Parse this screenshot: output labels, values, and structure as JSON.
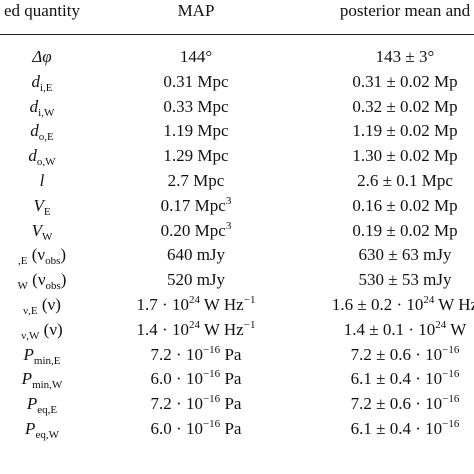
{
  "headers": [
    "ed quantity",
    "MAP",
    "posterior mean and"
  ],
  "rows": [
    {
      "sym": "Δφ",
      "sub": "",
      "sup": "",
      "tail": "",
      "map": "144°",
      "map_sup": "",
      "map_unit": "",
      "post": "143 ± 3°",
      "post_sup": "",
      "post_unit": ""
    },
    {
      "sym": "d",
      "sub": "i,E",
      "sup": "",
      "tail": "",
      "map": "0.31 Mpc",
      "map_sup": "",
      "map_unit": "",
      "post": "0.31 ± 0.02 Mp",
      "post_sup": "",
      "post_unit": ""
    },
    {
      "sym": "d",
      "sub": "i,W",
      "sup": "",
      "tail": "",
      "map": "0.33 Mpc",
      "map_sup": "",
      "map_unit": "",
      "post": "0.32 ± 0.02 Mp",
      "post_sup": "",
      "post_unit": ""
    },
    {
      "sym": "d",
      "sub": "o,E",
      "sup": "",
      "tail": "",
      "map": "1.19 Mpc",
      "map_sup": "",
      "map_unit": "",
      "post": "1.19 ± 0.02 Mp",
      "post_sup": "",
      "post_unit": ""
    },
    {
      "sym": "d",
      "sub": "o,W",
      "sup": "",
      "tail": "",
      "map": "1.29 Mpc",
      "map_sup": "",
      "map_unit": "",
      "post": "1.30 ± 0.02 Mp",
      "post_sup": "",
      "post_unit": ""
    },
    {
      "sym": "l",
      "sub": "",
      "sup": "",
      "tail": "",
      "map": "2.7 Mpc",
      "map_sup": "",
      "map_unit": "",
      "post": "2.6 ± 0.1 Mpc",
      "post_sup": "",
      "post_unit": ""
    },
    {
      "sym": "V",
      "sub": "E",
      "sup": "",
      "tail": "",
      "map": "0.17 Mpc",
      "map_sup": "3",
      "map_unit": "",
      "post": "0.16 ± 0.02 Mp",
      "post_sup": "",
      "post_unit": ""
    },
    {
      "sym": "V",
      "sub": "W",
      "sup": "",
      "tail": "",
      "map": "0.20 Mpc",
      "map_sup": "3",
      "map_unit": "",
      "post": "0.19 ± 0.02 Mp",
      "post_sup": "",
      "post_unit": ""
    },
    {
      "sym": "",
      "sub": ",E",
      "sup": "",
      "tail": "(ν",
      "tail_sub": "obs",
      "tail_end": ")",
      "map": "640 mJy",
      "map_sup": "",
      "map_unit": "",
      "post": "630 ± 63 mJy",
      "post_sup": "",
      "post_unit": ""
    },
    {
      "sym": "",
      "sub": "W",
      "sup": "",
      "tail": "(ν",
      "tail_sub": "obs",
      "tail_end": ")",
      "map": "520 mJy",
      "map_sup": "",
      "map_unit": "",
      "post": "530 ± 53 mJy",
      "post_sup": "",
      "post_unit": ""
    },
    {
      "sym": "",
      "sub": "ν,E",
      "sup": "",
      "tail": "(ν",
      "tail_sub": "",
      "tail_end": ")",
      "map": "1.7 · 10",
      "map_sup": "24",
      "map_unit": " W Hz",
      "map_sup2": "−1",
      "post": "1.6 ± 0.2 · 10",
      "post_sup": "24",
      "post_unit": " W Hz"
    },
    {
      "sym": "",
      "sub": "ν,W",
      "sup": "",
      "tail": "(ν",
      "tail_sub": "",
      "tail_end": ")",
      "map": "1.4 · 10",
      "map_sup": "24",
      "map_unit": " W Hz",
      "map_sup2": "−1",
      "post": "1.4 ± 0.1 · 10",
      "post_sup": "24",
      "post_unit": " W"
    },
    {
      "sym": "P",
      "sub": "min,E",
      "sup": "",
      "tail": "",
      "map": "7.2 · 10",
      "map_sup": "−16",
      "map_unit": " Pa",
      "post": "7.2 ± 0.6 · 10",
      "post_sup": "−16",
      "post_unit": ""
    },
    {
      "sym": "P",
      "sub": "min,W",
      "sup": "",
      "tail": "",
      "map": "6.0 · 10",
      "map_sup": "−16",
      "map_unit": " Pa",
      "post": "6.1 ± 0.4 · 10",
      "post_sup": "−16",
      "post_unit": ""
    },
    {
      "sym": "P",
      "sub": "eq,E",
      "sup": "",
      "tail": "",
      "map": "7.2 · 10",
      "map_sup": "−16",
      "map_unit": " Pa",
      "post": "7.2 ± 0.6 · 10",
      "post_sup": "−16",
      "post_unit": ""
    },
    {
      "sym": "P",
      "sub": "eq,W",
      "sup": "",
      "tail": "",
      "map": "6.0 · 10",
      "map_sup": "−16",
      "map_unit": " Pa",
      "post": "6.1 ± 0.4 · 10",
      "post_sup": "−16",
      "post_unit": ""
    }
  ]
}
